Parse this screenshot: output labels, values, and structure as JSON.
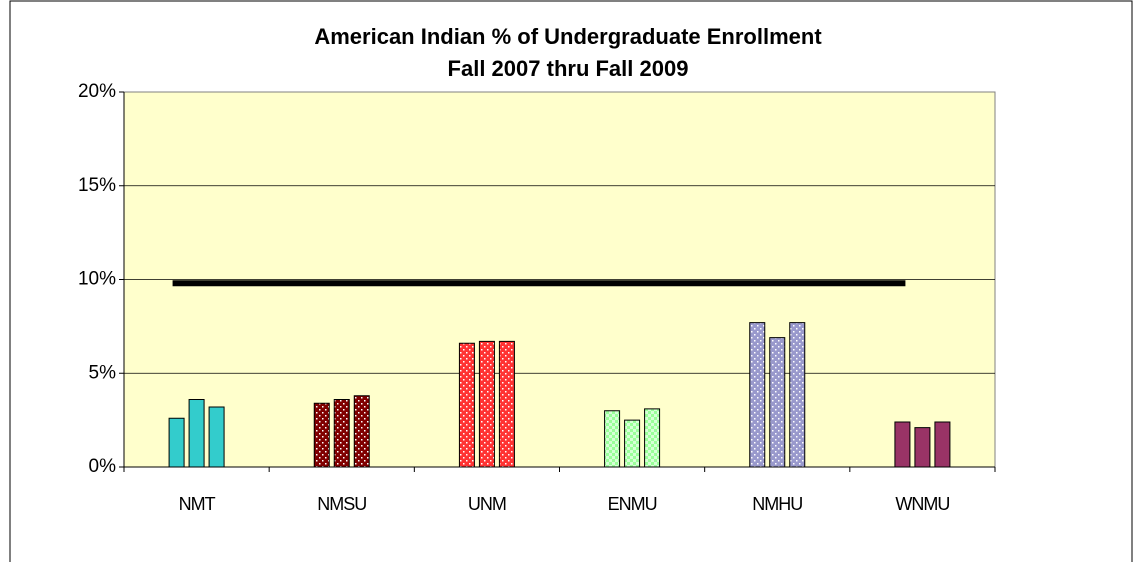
{
  "chart_data": {
    "type": "bar",
    "title": "American Indian % of Undergraduate Enrollment",
    "subtitle": "Fall 2007 thru Fall 2009",
    "categories": [
      "NMT",
      "NMSU",
      "UNM",
      "ENMU",
      "NMHU",
      "WNMU"
    ],
    "values": [
      [
        2.6,
        3.6,
        3.2
      ],
      [
        3.4,
        3.6,
        3.8
      ],
      [
        6.6,
        6.7,
        6.7
      ],
      [
        3.0,
        2.5,
        3.1
      ],
      [
        7.7,
        6.9,
        7.7
      ],
      [
        2.4,
        2.1,
        2.4
      ]
    ],
    "colors": [
      "#33cccc",
      "#800000",
      "#ff3333",
      "#99ff99",
      "#9999cc",
      "#993366"
    ],
    "patterns": [
      "solid",
      "dots",
      "dots",
      "checker",
      "dots",
      "solid"
    ],
    "reference_value": 9.8,
    "ylim": [
      0,
      20
    ],
    "yticks": [
      {
        "value": 0,
        "label": "0%"
      },
      {
        "value": 5,
        "label": "5%"
      },
      {
        "value": 10,
        "label": "10%"
      },
      {
        "value": 15,
        "label": "15%"
      },
      {
        "value": 20,
        "label": "20%"
      }
    ],
    "grid": true
  }
}
